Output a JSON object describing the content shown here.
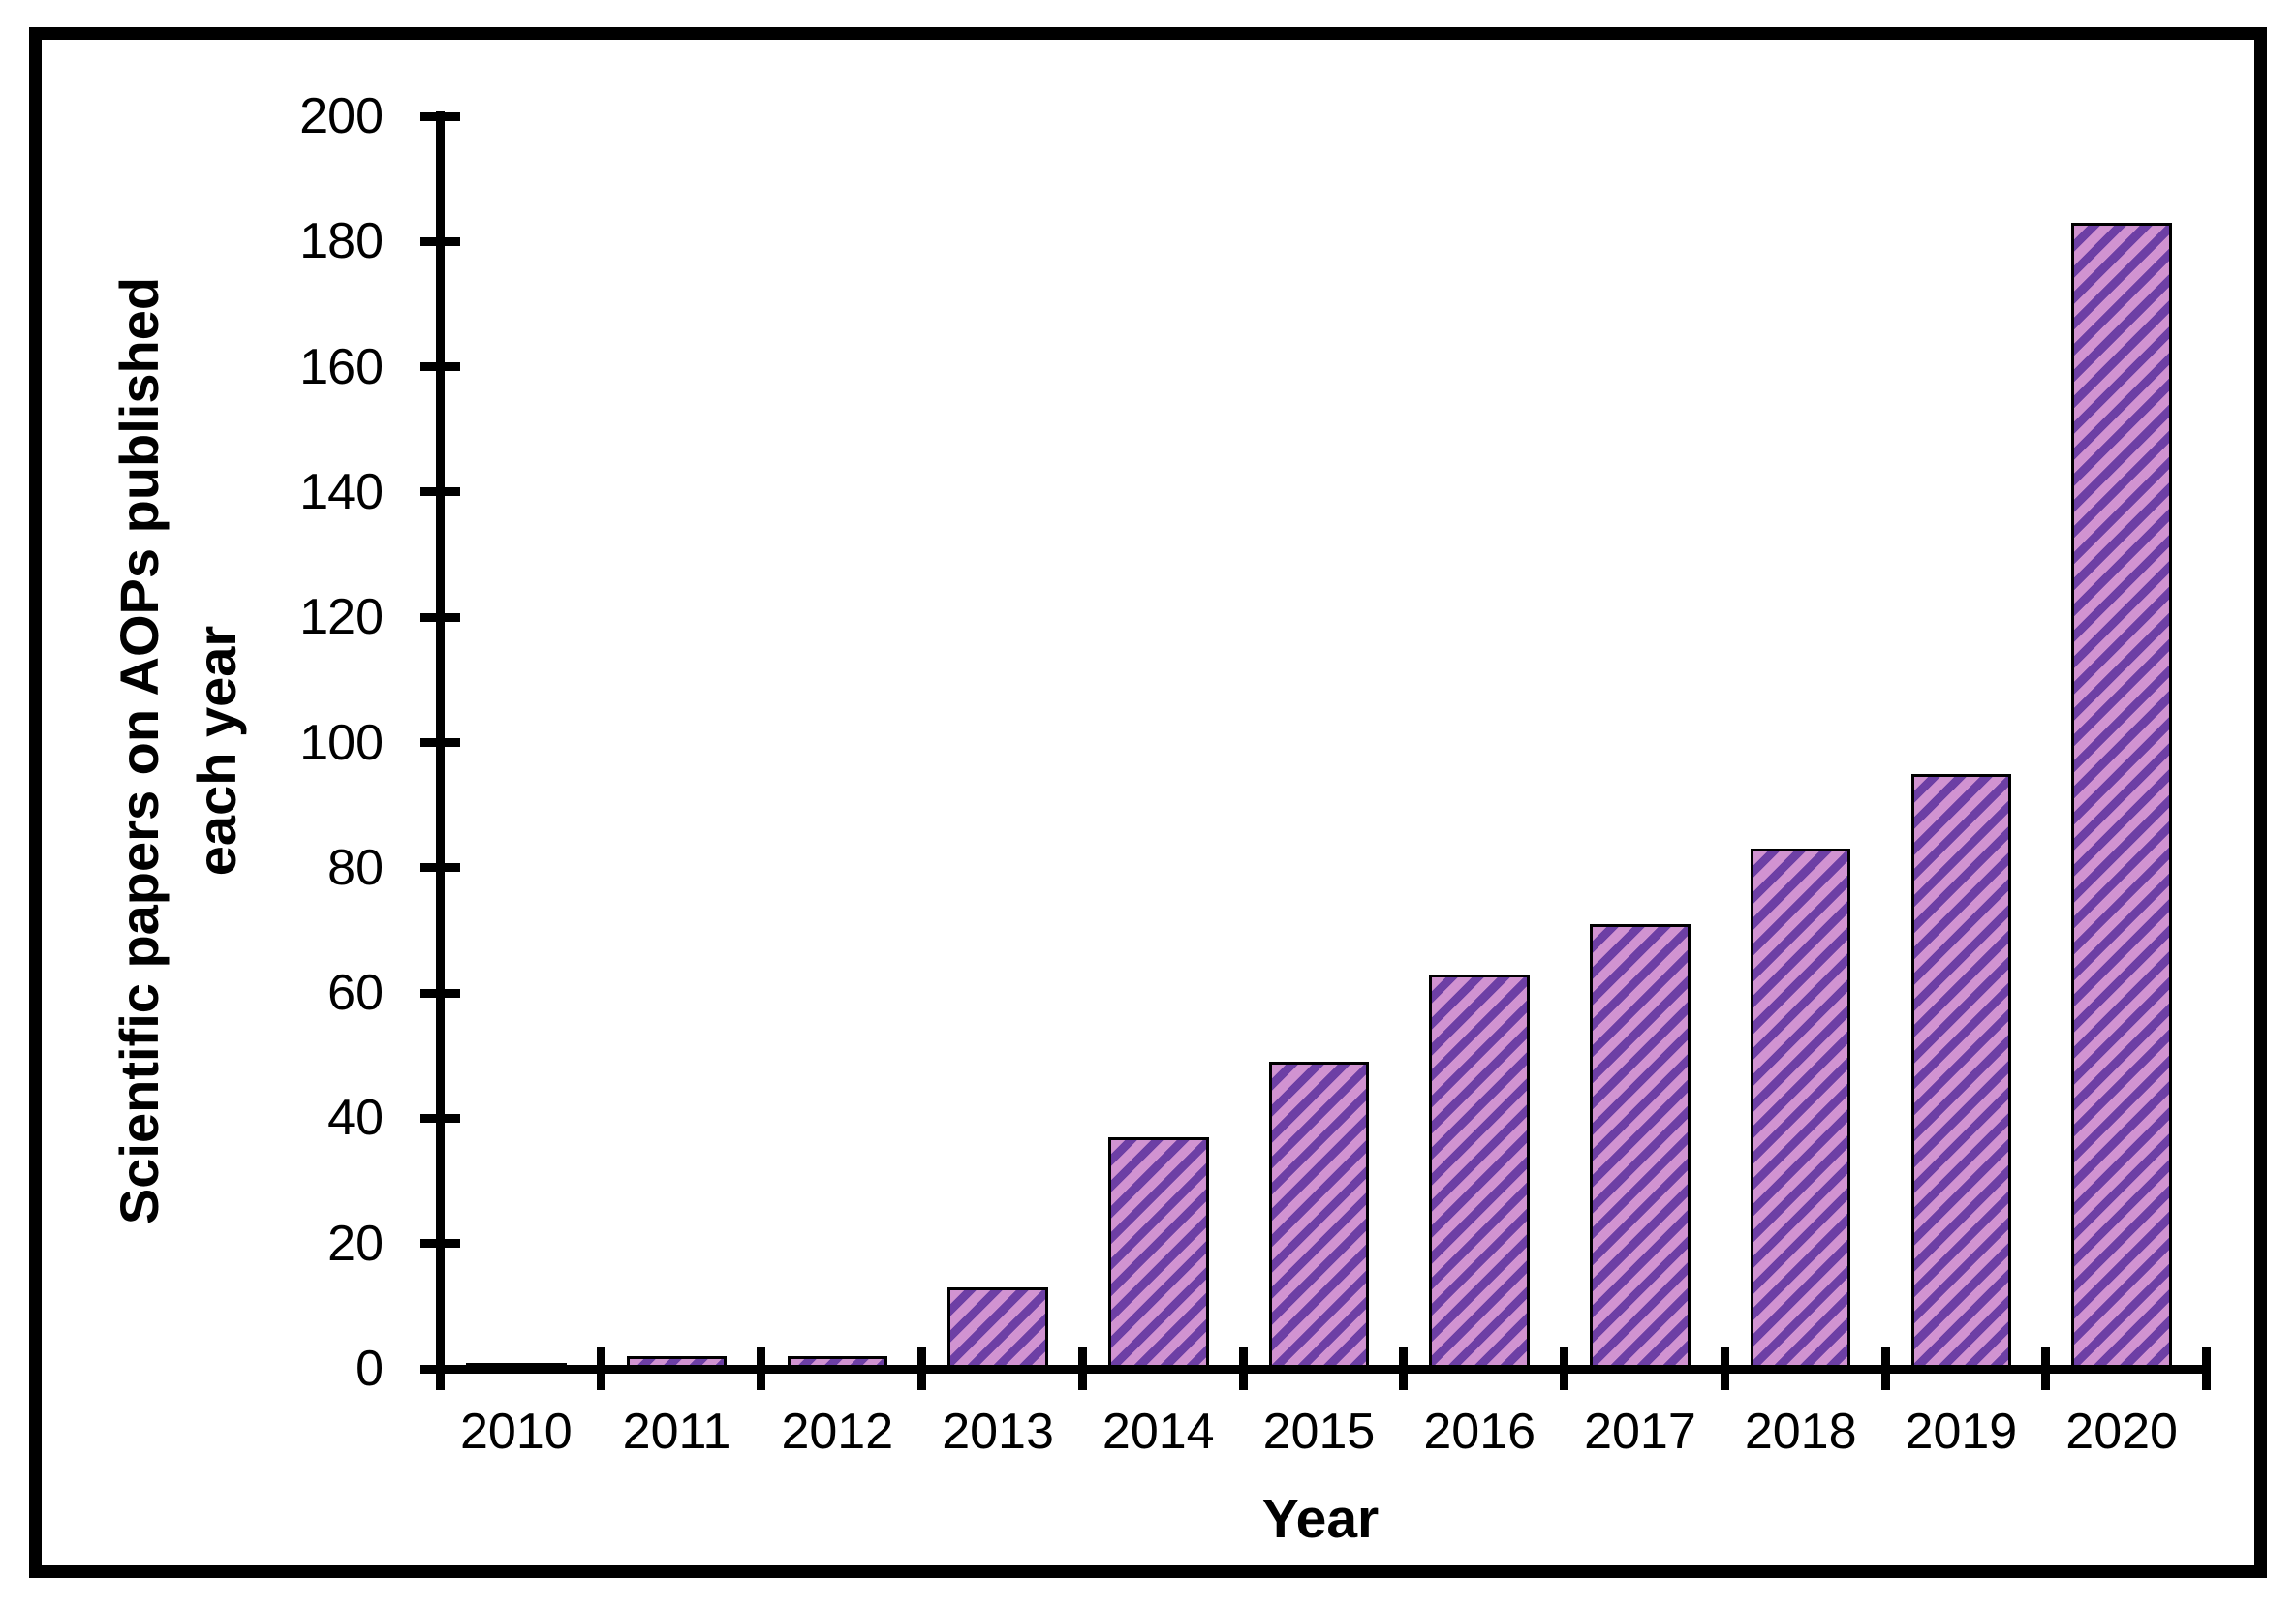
{
  "figure": {
    "xlabel": "Year",
    "ylabel_line1": "Scientific papers on AOPs published",
    "ylabel_line2": "each year"
  },
  "chart_data": {
    "type": "bar",
    "title": "",
    "categories": [
      "2010",
      "2011",
      "2012",
      "2013",
      "2014",
      "2015",
      "2016",
      "2017",
      "2018",
      "2019",
      "2020"
    ],
    "values": [
      1,
      2,
      2,
      13,
      37,
      49,
      63,
      71,
      83,
      95,
      183
    ],
    "xlabel": "Year",
    "ylabel": "Scientific papers on AOPs published each year",
    "ylabel_lines": [
      "Scientific papers on AOPs published",
      "each year"
    ],
    "ylim": [
      0,
      200
    ],
    "ytick_step": 20,
    "xtick_labels": [
      "2010",
      "2011",
      "2012",
      "2013",
      "2014",
      "2015",
      "2016",
      "2017",
      "2018",
      "2019",
      "2020"
    ],
    "grid": false,
    "legend": false,
    "hatch": "diagonal-up",
    "colors": {
      "bar_fill": "#d193d1",
      "bar_stripe": "#6d3fa5",
      "bar_border": "#000000",
      "axis": "#000000",
      "text": "#000000"
    }
  }
}
